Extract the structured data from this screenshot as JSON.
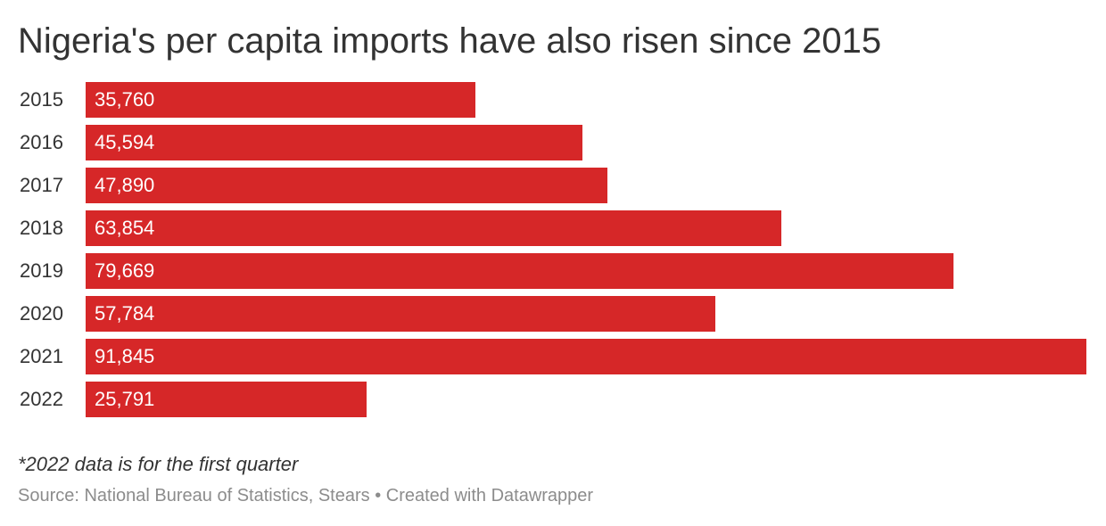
{
  "chart_data": {
    "type": "bar",
    "orientation": "horizontal",
    "title": "Nigeria's per capita imports have also risen since 2015",
    "categories": [
      "2015",
      "2016",
      "2017",
      "2018",
      "2019",
      "2020",
      "2021",
      "2022"
    ],
    "values": [
      35760,
      45594,
      47890,
      63854,
      79669,
      57784,
      91845,
      25791
    ],
    "value_labels": [
      "35,760",
      "45,594",
      "47,890",
      "63,854",
      "79,669",
      "57,784",
      "91,845",
      "25,791"
    ],
    "xlim": [
      0,
      91845
    ],
    "grid": false,
    "legend": "none",
    "bar_color": "#d62728"
  },
  "note": "*2022 data is for the first quarter",
  "source": "Source: National Bureau of Statistics, Stears • Created with Datawrapper"
}
